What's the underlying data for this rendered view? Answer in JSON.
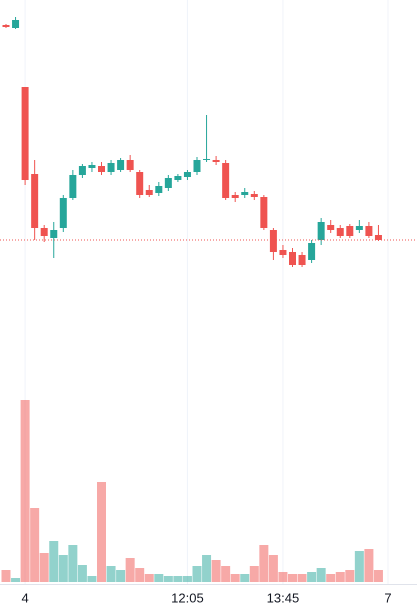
{
  "chart_data": {
    "type": "candlestick",
    "categories": [
      null,
      null,
      "4",
      null,
      null,
      null,
      null,
      null,
      null,
      null,
      null,
      null,
      null,
      null,
      null,
      null,
      null,
      null,
      null,
      "12:05",
      null,
      null,
      null,
      null,
      null,
      null,
      null,
      null,
      null,
      "13:45",
      null,
      null,
      null,
      null,
      null,
      null,
      null,
      null,
      null,
      null,
      "7"
    ],
    "open": [
      575,
      572,
      513,
      426,
      372,
      362,
      372,
      402,
      425,
      432,
      434,
      428,
      430,
      440,
      428,
      410,
      407,
      412,
      420,
      423,
      428,
      440,
      440,
      437,
      405,
      405,
      406,
      403,
      370,
      350,
      348,
      345,
      340,
      360,
      375,
      372,
      374,
      370,
      374,
      365,
      null
    ],
    "high": [
      576,
      583,
      513,
      440,
      375,
      378,
      405,
      430,
      436,
      438,
      438,
      440,
      442,
      445,
      430,
      415,
      418,
      425,
      426,
      430,
      443,
      485,
      444,
      440,
      408,
      412,
      409,
      405,
      372,
      355,
      352,
      348,
      360,
      382,
      380,
      375,
      376,
      380,
      378,
      375,
      null
    ],
    "low": [
      572,
      571,
      415,
      360,
      358,
      342,
      368,
      400,
      422,
      428,
      425,
      425,
      428,
      428,
      402,
      403,
      404,
      409,
      418,
      420,
      425,
      438,
      435,
      400,
      398,
      402,
      400,
      370,
      340,
      342,
      333,
      333,
      337,
      355,
      367,
      362,
      362,
      367,
      362,
      359,
      null
    ],
    "close": [
      573,
      580,
      420,
      372,
      364,
      370,
      402,
      425,
      434,
      435,
      428,
      437,
      440,
      430,
      405,
      405,
      414,
      422,
      424,
      428,
      440,
      441,
      438,
      402,
      402,
      408,
      403,
      372,
      348,
      345,
      335,
      335,
      357,
      378,
      370,
      364,
      364,
      374,
      364,
      360,
      null
    ],
    "volume": [
      12,
      4,
      182,
      74,
      29,
      41,
      27,
      37,
      17,
      6,
      100,
      16,
      12,
      24,
      14,
      8,
      8,
      6,
      6,
      6,
      16,
      27,
      22,
      16,
      8,
      8,
      16,
      37,
      27,
      10,
      8,
      8,
      10,
      14,
      8,
      10,
      12,
      31,
      33,
      12,
      null
    ],
    "up_color": "#26a69a",
    "down_color": "#ef5350",
    "ylim": [
      18,
      600
    ],
    "volume_ylim": [
      0,
      582
    ],
    "grid": true
  }
}
